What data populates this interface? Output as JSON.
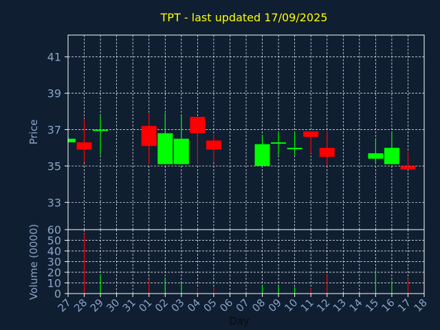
{
  "chart_data": {
    "type": "candlestick",
    "title": "TPT - last updated 17/09/2025",
    "xlabel": "Day",
    "price_ylabel": "Price",
    "volume_ylabel": "Volume (0000)",
    "price_ylim": [
      31.5,
      42.2
    ],
    "price_yticks": [
      33,
      35,
      37,
      39,
      41
    ],
    "volume_ylim": [
      0,
      60
    ],
    "volume_yticks": [
      0,
      10,
      20,
      30,
      40,
      50,
      60
    ],
    "grid": true,
    "x_ticks": [
      "27",
      "28",
      "29",
      "30",
      "31",
      "01",
      "02",
      "03",
      "04",
      "05",
      "06",
      "07",
      "08",
      "09",
      "10",
      "11",
      "12",
      "13",
      "14",
      "15",
      "16",
      "17",
      "18"
    ],
    "candles": [
      {
        "day": "27",
        "open": 36.3,
        "high": 36.6,
        "low": 36.3,
        "close": 36.5
      },
      {
        "day": "28",
        "open": 36.3,
        "high": 37.6,
        "low": 35.2,
        "close": 35.9
      },
      {
        "day": "29",
        "open": 37.0,
        "high": 37.8,
        "low": 35.6,
        "close": 37.0
      },
      {
        "day": "01",
        "open": 37.2,
        "high": 37.9,
        "low": 35.1,
        "close": 36.1
      },
      {
        "day": "02",
        "open": 35.1,
        "high": 37.9,
        "low": 35.1,
        "close": 36.8
      },
      {
        "day": "03",
        "open": 35.1,
        "high": 37.8,
        "low": 35.1,
        "close": 36.5
      },
      {
        "day": "04",
        "open": 37.7,
        "high": 37.7,
        "low": 35.1,
        "close": 36.8
      },
      {
        "day": "05",
        "open": 36.4,
        "high": 36.7,
        "low": 35.2,
        "close": 35.9
      },
      {
        "day": "08",
        "open": 35.0,
        "high": 36.7,
        "low": 35.0,
        "close": 36.2
      },
      {
        "day": "09",
        "open": 36.3,
        "high": 36.9,
        "low": 35.6,
        "close": 36.3
      },
      {
        "day": "10",
        "open": 36.0,
        "high": 36.9,
        "low": 35.6,
        "close": 36.0
      },
      {
        "day": "11",
        "open": 36.9,
        "high": 36.9,
        "low": 35.7,
        "close": 36.6
      },
      {
        "day": "12",
        "open": 36.0,
        "high": 36.9,
        "low": 35.0,
        "close": 35.5
      },
      {
        "day": "15",
        "open": 35.4,
        "high": 36.5,
        "low": 35.1,
        "close": 35.7
      },
      {
        "day": "16",
        "open": 35.1,
        "high": 36.9,
        "low": 35.1,
        "close": 36.0
      },
      {
        "day": "17",
        "open": 35.0,
        "high": 35.8,
        "low": 34.8,
        "close": 34.8
      }
    ],
    "volume": [
      {
        "day": "28",
        "value": 56,
        "color": "#ff0000"
      },
      {
        "day": "29",
        "value": 18,
        "color": "#00ff00"
      },
      {
        "day": "01",
        "value": 13,
        "color": "#ff0000"
      },
      {
        "day": "02",
        "value": 15,
        "color": "#00ff00"
      },
      {
        "day": "03",
        "value": 10,
        "color": "#00ff00"
      },
      {
        "day": "04",
        "value": 5,
        "color": "#ff0000"
      },
      {
        "day": "05",
        "value": 6,
        "color": "#ff0000"
      },
      {
        "day": "08",
        "value": 8,
        "color": "#00ff00"
      },
      {
        "day": "09",
        "value": 7,
        "color": "#00ff00"
      },
      {
        "day": "10",
        "value": 6,
        "color": "#00ff00"
      },
      {
        "day": "11",
        "value": 5,
        "color": "#ff0000"
      },
      {
        "day": "12",
        "value": 18,
        "color": "#ff0000"
      },
      {
        "day": "15",
        "value": 22,
        "color": "#00ff00"
      },
      {
        "day": "16",
        "value": 12,
        "color": "#00ff00"
      },
      {
        "day": "17",
        "value": 14,
        "color": "#ff0000"
      }
    ],
    "colors": {
      "background": "#0f1e30",
      "title": "#ffff00",
      "axis_text": "#8aa4c8",
      "grid": "#ffffff",
      "up": "#00ff00",
      "down": "#ff0000"
    }
  }
}
